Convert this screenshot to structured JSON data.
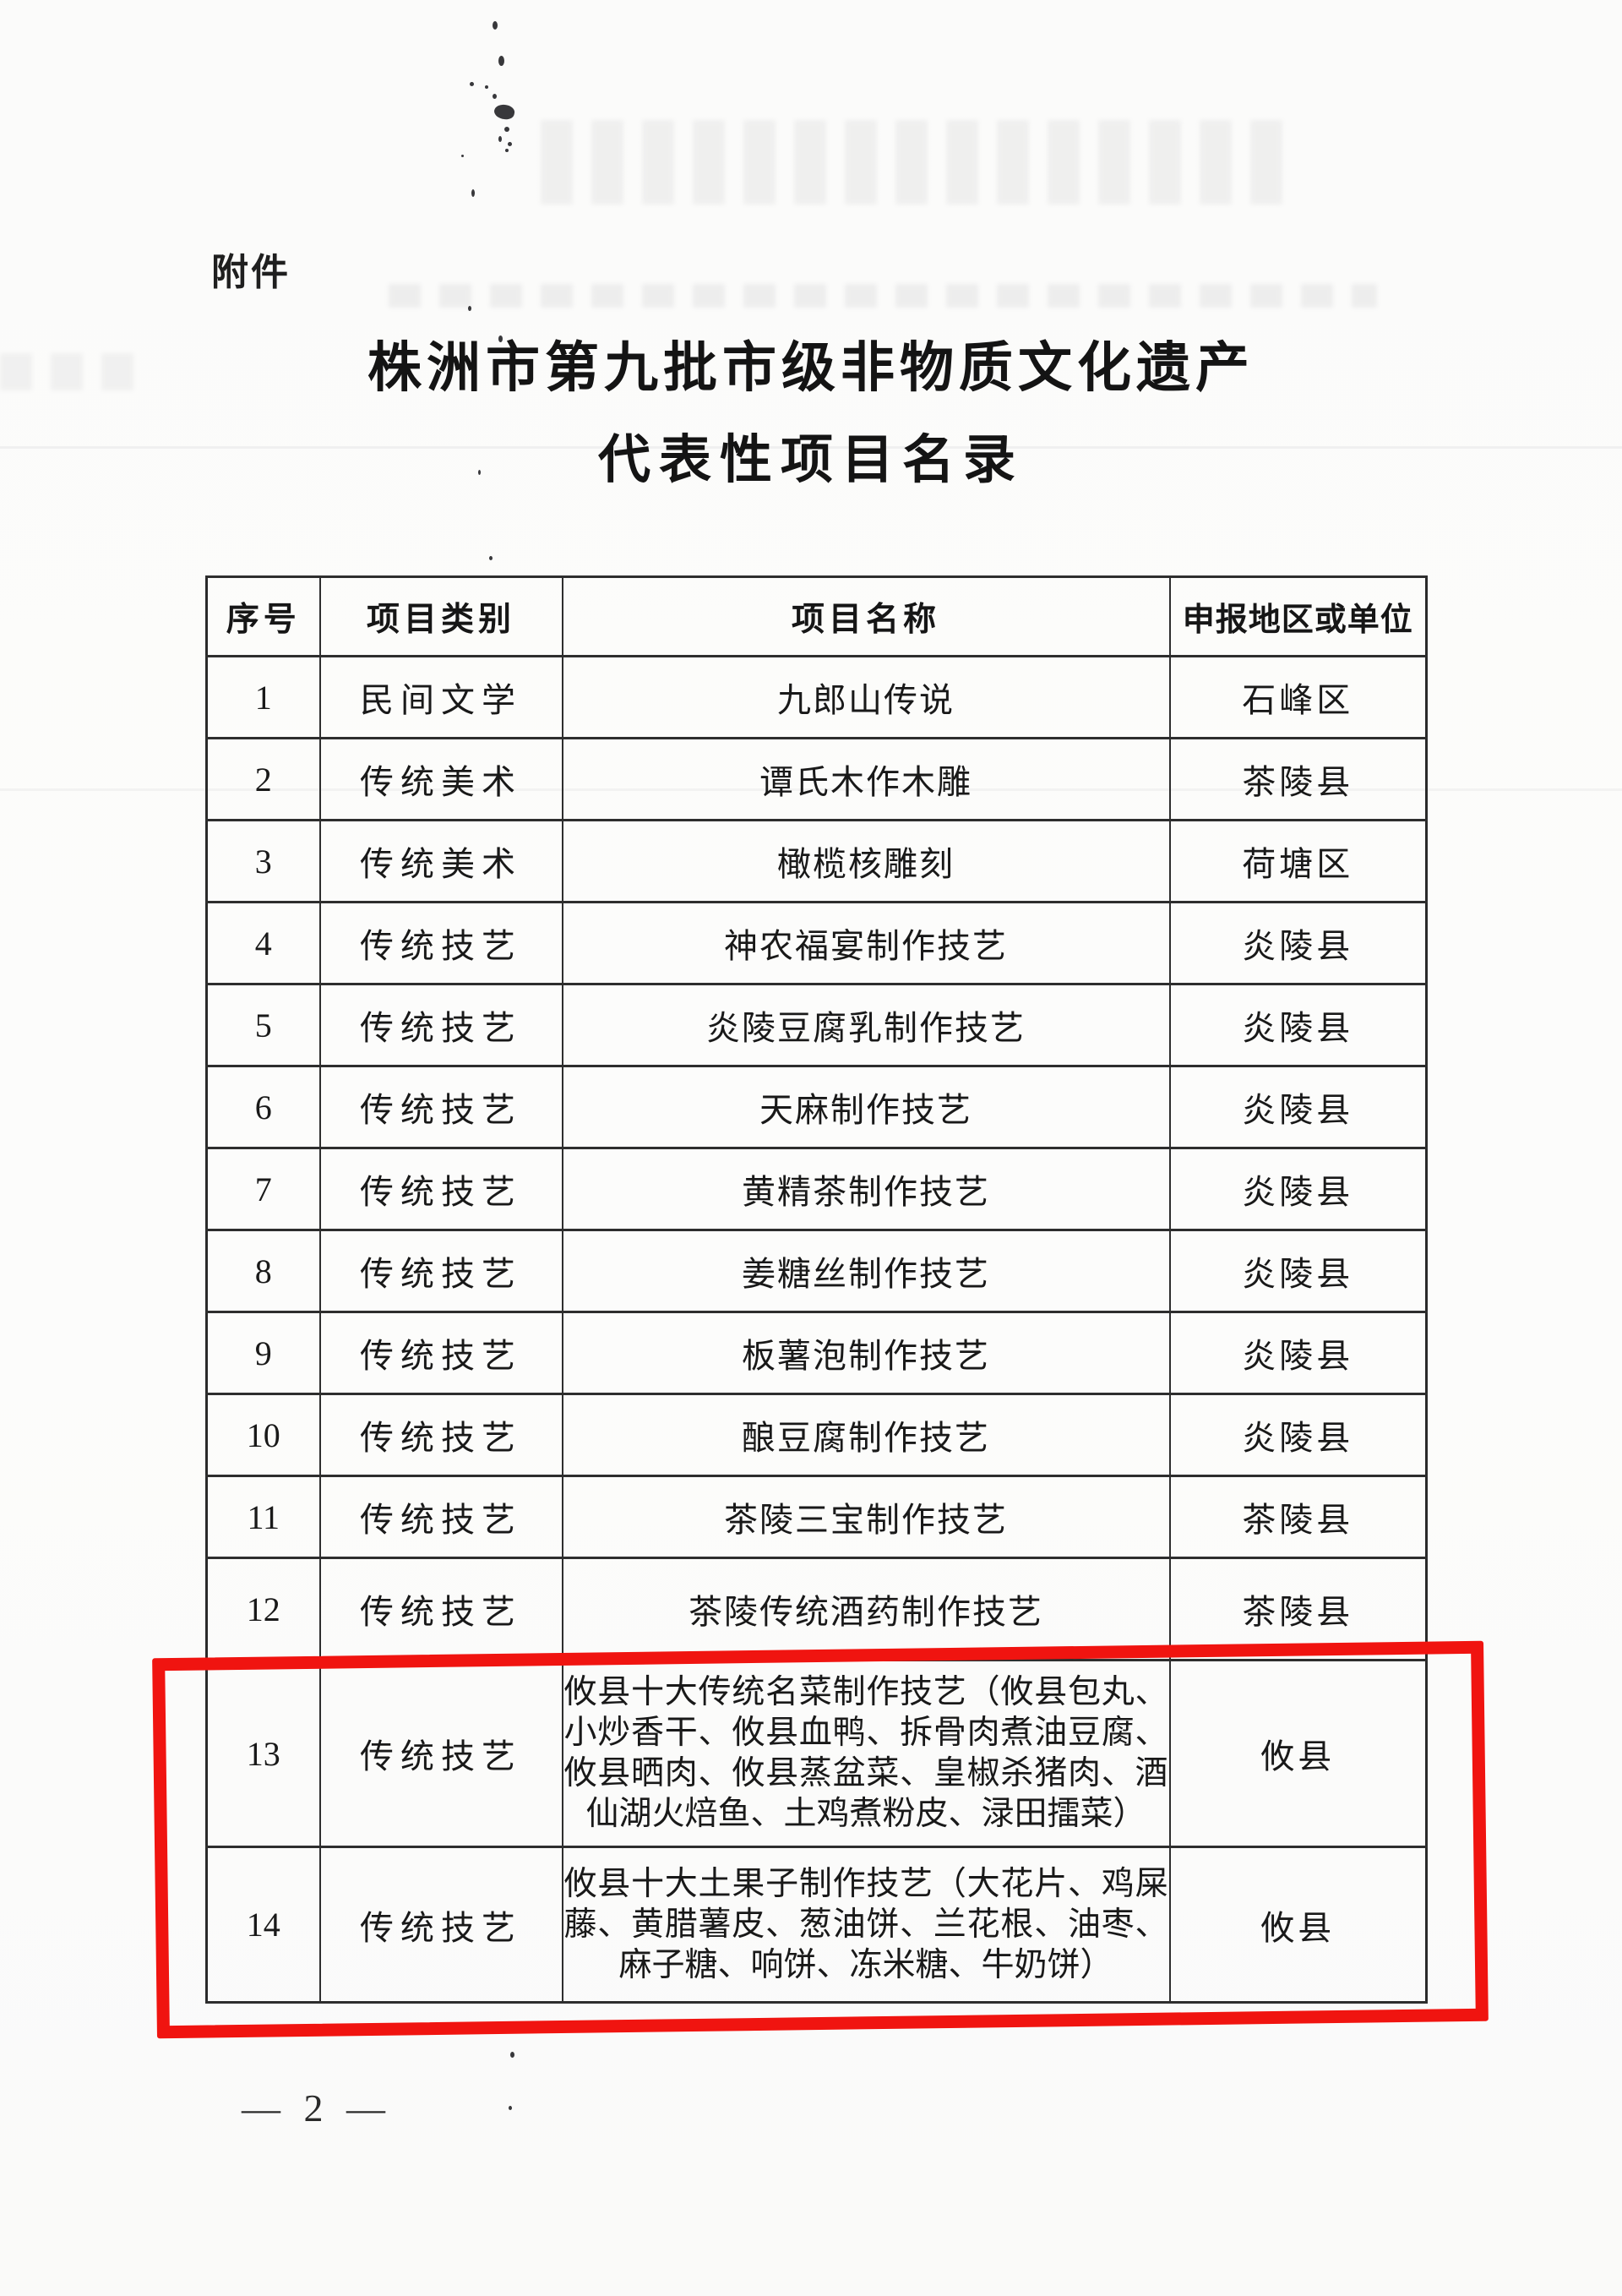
{
  "document": {
    "attachment_label": "附件",
    "title_line1": "株洲市第九批市级非物质文化遗产",
    "title_line2": "代表性项目名录",
    "page_number": "— 2 —"
  },
  "table": {
    "headers": [
      "序号",
      "项目类别",
      "项目名称",
      "申报地区或单位"
    ],
    "rows": [
      {
        "no": "1",
        "category": "民间文学",
        "name": "九郎山传说",
        "region": "石峰区",
        "highlighted": false
      },
      {
        "no": "2",
        "category": "传统美术",
        "name": "谭氏木作木雕",
        "region": "茶陵县",
        "highlighted": false
      },
      {
        "no": "3",
        "category": "传统美术",
        "name": "橄榄核雕刻",
        "region": "荷塘区",
        "highlighted": false
      },
      {
        "no": "4",
        "category": "传统技艺",
        "name": "神农福宴制作技艺",
        "region": "炎陵县",
        "highlighted": false
      },
      {
        "no": "5",
        "category": "传统技艺",
        "name": "炎陵豆腐乳制作技艺",
        "region": "炎陵县",
        "highlighted": false
      },
      {
        "no": "6",
        "category": "传统技艺",
        "name": "天麻制作技艺",
        "region": "炎陵县",
        "highlighted": false
      },
      {
        "no": "7",
        "category": "传统技艺",
        "name": "黄精茶制作技艺",
        "region": "炎陵县",
        "highlighted": false
      },
      {
        "no": "8",
        "category": "传统技艺",
        "name": "姜糖丝制作技艺",
        "region": "炎陵县",
        "highlighted": false
      },
      {
        "no": "9",
        "category": "传统技艺",
        "name": "板薯泡制作技艺",
        "region": "炎陵县",
        "highlighted": false
      },
      {
        "no": "10",
        "category": "传统技艺",
        "name": "酿豆腐制作技艺",
        "region": "炎陵县",
        "highlighted": false
      },
      {
        "no": "11",
        "category": "传统技艺",
        "name": "茶陵三宝制作技艺",
        "region": "茶陵县",
        "highlighted": false
      },
      {
        "no": "12",
        "category": "传统技艺",
        "name": "茶陵传统酒药制作技艺",
        "region": "茶陵县",
        "highlighted": false
      },
      {
        "no": "13",
        "category": "传统技艺",
        "name": "攸县十大传统名菜制作技艺（攸县包丸、小炒香干、攸县血鸭、拆骨肉煮油豆腐、攸县晒肉、攸县蒸盆菜、皇椒杀猪肉、酒仙湖火焙鱼、土鸡煮粉皮、渌田擂菜）",
        "region": "攸县",
        "highlighted": true
      },
      {
        "no": "14",
        "category": "传统技艺",
        "name": "攸县十大土果子制作技艺（大花片、鸡屎藤、黄腊薯皮、葱油饼、兰花根、油枣、麻子糖、响饼、冻米糖、牛奶饼）",
        "region": "攸县",
        "highlighted": true
      }
    ]
  },
  "annotation": {
    "highlight_color": "#f01410",
    "highlighted_row_numbers": [
      "13",
      "14"
    ]
  }
}
